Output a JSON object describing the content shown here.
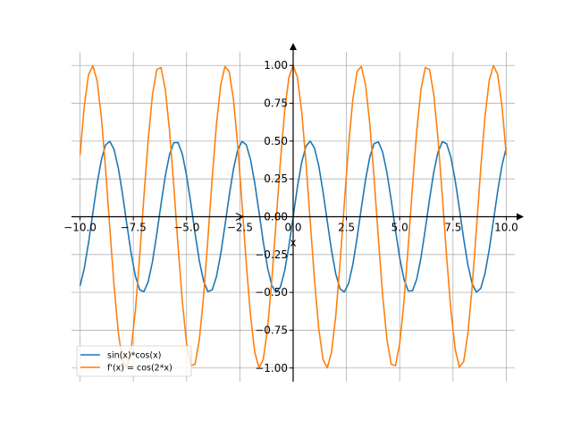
{
  "chart_data": {
    "type": "line",
    "title": "",
    "xlabel": "x",
    "ylabel": "",
    "xlim": [
      -10.4,
      10.4
    ],
    "ylim": [
      -1.09,
      1.09
    ],
    "grid": true,
    "legend_position": "lower-left",
    "x_ticks": [
      -10.0,
      -7.5,
      -5.0,
      -2.5,
      0.0,
      2.5,
      5.0,
      7.5,
      10.0
    ],
    "x_tick_labels": [
      "−10.0",
      "−7.5",
      "−5.0",
      "−2.5",
      "0.0",
      "2.5",
      "5.0",
      "7.5",
      "10.0"
    ],
    "y_ticks": [
      1.0,
      0.75,
      0.5,
      0.25,
      0.0,
      -0.25,
      -0.5,
      -0.75,
      -1.0
    ],
    "y_tick_labels": [
      "1.00",
      "0.75",
      "0.50",
      "0.25",
      "0.00",
      "−0.25",
      "−0.50",
      "−0.75",
      "−1.00"
    ],
    "x_range": [
      -10,
      10
    ],
    "samples": 101,
    "series": [
      {
        "name": "sin(x)*cos(x)",
        "formula": "sin(x)*cos(x)",
        "color": "#1f77b4"
      },
      {
        "name": "f'(x) = cos(2*x)",
        "formula": "cos(2*x)",
        "color": "#ff7f0e"
      }
    ],
    "axis_color": "#000000",
    "grid_color": "#b0b0b0"
  }
}
